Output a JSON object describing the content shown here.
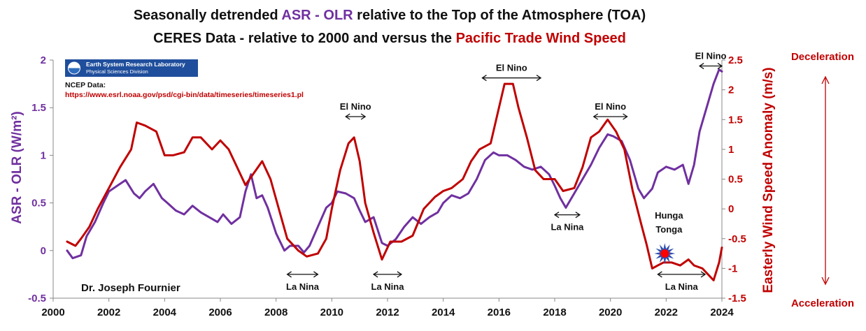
{
  "colors": {
    "asr": "#7030A0",
    "wind": "#C00000",
    "axis_left": "#7030A0",
    "axis_right": "#C00000",
    "text": "#111111",
    "logo_bg": "#1F4E9C"
  },
  "chart_data": {
    "type": "line",
    "title_line1": {
      "pre": "Seasonally detrended ",
      "highlight": "ASR - OLR",
      "post": " relative to the Top of the Atmosphere (TOA)"
    },
    "title_line2": {
      "pre": "CERES Data - relative to 2000 and versus the ",
      "highlight": "Pacific Trade Wind Speed"
    },
    "ylabel_left": "ASR - OLR (W/m²)",
    "ylabel_right": "Easterly Wind Speed Anomaly (m/s)",
    "xlim": [
      2000,
      2024
    ],
    "ylim_left": [
      -0.5,
      2
    ],
    "ylim_right": [
      -1.5,
      2.5
    ],
    "x_ticks": [
      "2000",
      "2002",
      "2004",
      "2006",
      "2008",
      "2010",
      "2012",
      "2014",
      "2016",
      "2018",
      "2020",
      "2022",
      "2024"
    ],
    "y_left_ticks": [
      "-0.5",
      "0",
      "0.5",
      "1",
      "1.5",
      "2"
    ],
    "y_right_ticks": [
      "-1.5",
      "-1",
      "-0.5",
      "0",
      "0.5",
      "1",
      "1.5",
      "2",
      "2.5"
    ],
    "series": [
      {
        "name": "ASR - OLR",
        "axis": "left",
        "x": [
          2000.5,
          2000.7,
          2001.0,
          2001.2,
          2001.5,
          2001.8,
          2002.0,
          2002.3,
          2002.6,
          2002.9,
          2003.1,
          2003.3,
          2003.6,
          2003.9,
          2004.1,
          2004.4,
          2004.7,
          2005.0,
          2005.3,
          2005.6,
          2005.9,
          2006.1,
          2006.4,
          2006.7,
          2006.9,
          2007.1,
          2007.3,
          2007.5,
          2007.7,
          2008.0,
          2008.3,
          2008.5,
          2008.8,
          2009.0,
          2009.2,
          2009.5,
          2009.8,
          2010.0,
          2010.2,
          2010.5,
          2010.8,
          2011.0,
          2011.2,
          2011.5,
          2011.8,
          2012.0,
          2012.3,
          2012.6,
          2012.9,
          2013.2,
          2013.5,
          2013.8,
          2014.0,
          2014.3,
          2014.6,
          2014.9,
          2015.2,
          2015.5,
          2015.8,
          2016.0,
          2016.3,
          2016.6,
          2016.9,
          2017.2,
          2017.5,
          2017.8,
          2018.0,
          2018.2,
          2018.4,
          2018.7,
          2019.0,
          2019.3,
          2019.6,
          2019.9,
          2020.1,
          2020.4,
          2020.7,
          2021.0,
          2021.2,
          2021.5,
          2021.7,
          2022.0,
          2022.3,
          2022.6,
          2022.8,
          2023.0,
          2023.2,
          2023.5,
          2023.7,
          2023.9,
          2024.0
        ],
        "values": [
          0.0,
          -0.08,
          -0.05,
          0.15,
          0.3,
          0.5,
          0.62,
          0.68,
          0.74,
          0.6,
          0.55,
          0.62,
          0.7,
          0.55,
          0.5,
          0.42,
          0.38,
          0.47,
          0.4,
          0.35,
          0.3,
          0.38,
          0.28,
          0.35,
          0.62,
          0.8,
          0.55,
          0.58,
          0.45,
          0.18,
          0.0,
          0.05,
          0.05,
          -0.02,
          0.05,
          0.25,
          0.45,
          0.5,
          0.62,
          0.6,
          0.55,
          0.42,
          0.3,
          0.35,
          0.08,
          0.05,
          0.12,
          0.25,
          0.35,
          0.28,
          0.35,
          0.4,
          0.5,
          0.58,
          0.55,
          0.6,
          0.75,
          0.95,
          1.03,
          1.0,
          1.0,
          0.95,
          0.88,
          0.85,
          0.88,
          0.8,
          0.68,
          0.55,
          0.45,
          0.6,
          0.75,
          0.9,
          1.08,
          1.22,
          1.2,
          1.15,
          0.95,
          0.65,
          0.55,
          0.65,
          0.82,
          0.88,
          0.85,
          0.9,
          0.7,
          0.9,
          1.25,
          1.55,
          1.75,
          1.9,
          1.88
        ]
      },
      {
        "name": "Easterly Wind Speed Anomaly",
        "axis": "right",
        "x": [
          2000.5,
          2000.8,
          2001.0,
          2001.3,
          2001.6,
          2002.0,
          2002.4,
          2002.8,
          2003.0,
          2003.3,
          2003.7,
          2004.0,
          2004.3,
          2004.7,
          2005.0,
          2005.3,
          2005.7,
          2006.0,
          2006.3,
          2006.6,
          2006.9,
          2007.2,
          2007.5,
          2007.8,
          2008.1,
          2008.4,
          2008.8,
          2009.1,
          2009.5,
          2009.8,
          2010.0,
          2010.3,
          2010.6,
          2010.8,
          2011.0,
          2011.2,
          2011.5,
          2011.8,
          2012.1,
          2012.5,
          2012.9,
          2013.3,
          2013.7,
          2014.0,
          2014.3,
          2014.7,
          2015.0,
          2015.3,
          2015.7,
          2016.0,
          2016.2,
          2016.5,
          2016.7,
          2017.0,
          2017.3,
          2017.6,
          2018.0,
          2018.3,
          2018.7,
          2019.0,
          2019.3,
          2019.6,
          2019.9,
          2020.2,
          2020.5,
          2020.8,
          2021.1,
          2021.3,
          2021.5,
          2021.7,
          2021.9,
          2022.2,
          2022.5,
          2022.8,
          2023.0,
          2023.3,
          2023.5,
          2023.7,
          2023.9,
          2024.0
        ],
        "values": [
          -0.55,
          -0.62,
          -0.5,
          -0.3,
          0.0,
          0.35,
          0.7,
          1.0,
          1.45,
          1.4,
          1.3,
          0.9,
          0.9,
          0.95,
          1.2,
          1.2,
          1.0,
          1.15,
          1.0,
          0.7,
          0.4,
          0.6,
          0.8,
          0.5,
          0.0,
          -0.5,
          -0.7,
          -0.8,
          -0.75,
          -0.5,
          0.0,
          0.65,
          1.1,
          1.2,
          0.8,
          0.1,
          -0.4,
          -0.85,
          -0.55,
          -0.55,
          -0.45,
          0.0,
          0.2,
          0.3,
          0.35,
          0.5,
          0.8,
          1.0,
          1.1,
          1.7,
          2.1,
          2.1,
          1.7,
          1.2,
          0.65,
          0.5,
          0.5,
          0.3,
          0.35,
          0.7,
          1.2,
          1.3,
          1.5,
          1.3,
          1.0,
          0.3,
          -0.25,
          -0.6,
          -1.0,
          -0.95,
          -0.9,
          -0.9,
          -0.95,
          -0.85,
          -0.95,
          -1.0,
          -1.1,
          -1.2,
          -0.9,
          -0.65
        ]
      }
    ],
    "annotations": [
      {
        "label": "El Nino",
        "kind": "arrow",
        "x_start": 2010.5,
        "x_end": 2011.2,
        "y_right": 1.55
      },
      {
        "label": "El Nino",
        "kind": "arrow",
        "x_start": 2015.4,
        "x_end": 2017.5,
        "y_right": 2.2
      },
      {
        "label": "El Nino",
        "kind": "arrow",
        "x_start": 2019.4,
        "x_end": 2020.6,
        "y_right": 1.55
      },
      {
        "label": "El Nino",
        "kind": "arrow",
        "x_start": 2023.2,
        "x_end": 2024.0,
        "y_right": 2.4
      },
      {
        "label": "La Nina",
        "kind": "arrow",
        "x_start": 2008.4,
        "x_end": 2009.5,
        "y_right": -1.1
      },
      {
        "label": "La Nina",
        "kind": "arrow",
        "x_start": 2011.5,
        "x_end": 2012.5,
        "y_right": -1.1
      },
      {
        "label": "La Nina",
        "kind": "arrow",
        "x_start": 2018.0,
        "x_end": 2018.9,
        "y_right": -0.1
      },
      {
        "label": "La Nina",
        "kind": "arrow",
        "x_start": 2021.7,
        "x_end": 2023.4,
        "y_right": -1.1
      }
    ],
    "hunga_tonga": {
      "label_line1": "Hunga",
      "label_line2": "Tonga",
      "x": 2021.95,
      "y_right": -0.75
    },
    "side_labels": {
      "top": "Deceleration",
      "bottom": "Acceleration"
    },
    "source": {
      "logo_text_line1": "Earth System Research Laboratory",
      "logo_text_line2": "Physical Sciences Division",
      "ncep_label": "NCEP Data:",
      "url": "https://www.esrl.noaa.gov/psd/cgi-bin/data/timeseries/timeseries1.pl"
    },
    "author": "Dr. Joseph Fournier"
  }
}
